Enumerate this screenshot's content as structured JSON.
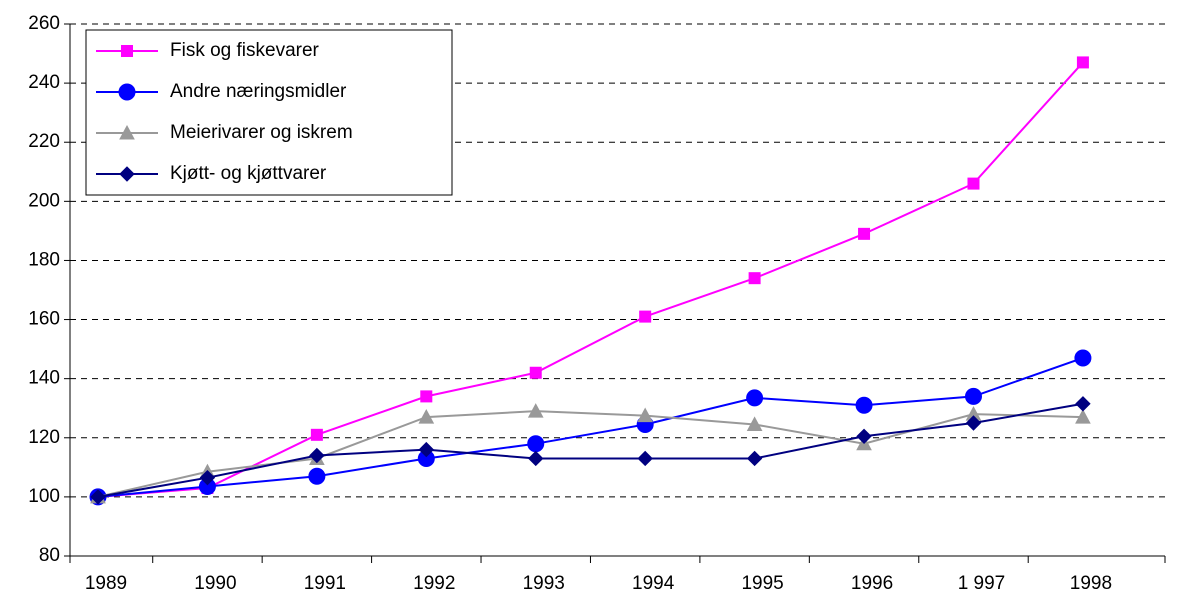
{
  "chart_data": {
    "type": "line",
    "categories": [
      "1989",
      "1990",
      "1991",
      "1992",
      "1993",
      "1994",
      "1995",
      "1996",
      "1 997",
      "1998"
    ],
    "series": [
      {
        "name": "Fisk og fiskevarer",
        "color": "#ff00ff",
        "marker": "square",
        "values": [
          100,
          103,
          121,
          134,
          142,
          161,
          174,
          189,
          206,
          247
        ]
      },
      {
        "name": "Andre næringsmidler",
        "color": "#0000ff",
        "marker": "circle",
        "values": [
          100,
          103.5,
          107,
          113,
          118,
          124.5,
          133.5,
          131,
          134,
          147
        ]
      },
      {
        "name": "Meierivarer og iskrem",
        "color": "#999999",
        "marker": "triangle",
        "values": [
          100,
          108.5,
          113,
          127,
          129,
          127.5,
          124.5,
          118,
          128,
          127
        ]
      },
      {
        "name": "Kjøtt- og kjøttvarer",
        "color": "#000080",
        "marker": "diamond",
        "values": [
          100,
          106.5,
          114,
          116,
          113,
          113,
          113,
          120.5,
          125,
          131.5
        ]
      }
    ],
    "ylim": [
      80,
      260
    ],
    "yticks": [
      80,
      100,
      120,
      140,
      160,
      180,
      200,
      220,
      240,
      260
    ],
    "grid": true,
    "legend": "upper left"
  }
}
